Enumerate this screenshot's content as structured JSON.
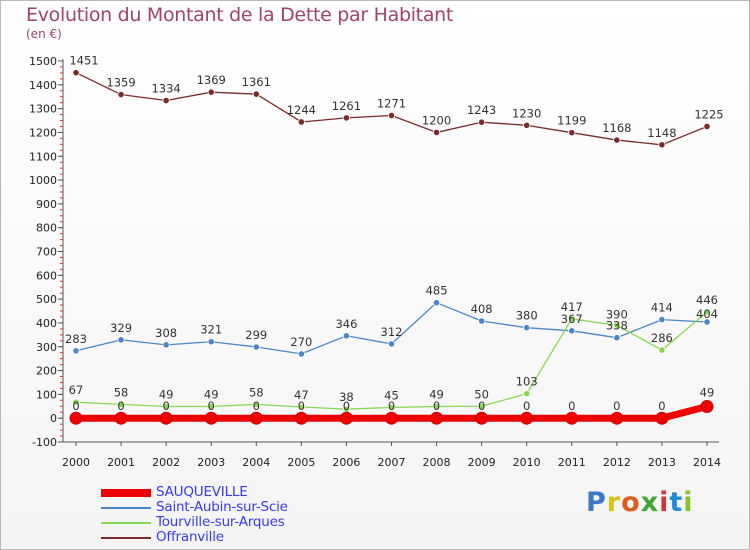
{
  "title": "Evolution du Montant de la Dette par Habitant",
  "unit": "(en €)",
  "brand": {
    "text": "Proxiti",
    "colors": [
      "#3b78c8",
      "#d8c21a",
      "#e05a1a",
      "#3fa635",
      "#c83b3b",
      "#1e8bd8",
      "#8ac32b"
    ]
  },
  "chart_data": {
    "type": "line",
    "x": [
      "2000",
      "2001",
      "2002",
      "2003",
      "2004",
      "2005",
      "2006",
      "2007",
      "2008",
      "2009",
      "2010",
      "2011",
      "2012",
      "2013",
      "2014"
    ],
    "ylim": [
      -100,
      1500
    ],
    "yticks": [
      -100,
      0,
      100,
      200,
      300,
      400,
      500,
      600,
      700,
      800,
      900,
      1000,
      1100,
      1200,
      1300,
      1400,
      1500
    ],
    "grid": false,
    "legend_position": "bottom-left",
    "series": [
      {
        "name": "SAUQUEVILLE",
        "color": "#ee0000",
        "values": [
          0,
          0,
          0,
          0,
          0,
          0,
          0,
          0,
          0,
          0,
          0,
          0,
          0,
          0,
          49
        ],
        "labels": [
          "0",
          "0",
          "0",
          "0",
          "0",
          "0",
          "0",
          "0",
          "0",
          "0",
          "0",
          "0",
          "0",
          "0",
          "49"
        ]
      },
      {
        "name": "Saint-Aubin-sur-Scie",
        "color": "#4a86c8",
        "values": [
          283,
          329,
          308,
          321,
          299,
          270,
          346,
          312,
          485,
          408,
          380,
          367,
          338,
          414,
          404
        ],
        "labels": [
          "283",
          "329",
          "308",
          "321",
          "299",
          "270",
          "346",
          "312",
          "485",
          "408",
          "380",
          "367",
          "338",
          "414",
          "404"
        ]
      },
      {
        "name": "Tourville-sur-Arques",
        "color": "#86d850",
        "values": [
          67,
          58,
          49,
          49,
          58,
          47,
          38,
          45,
          49,
          50,
          103,
          417,
          390,
          286,
          446
        ],
        "labels": [
          "67",
          "58",
          "49",
          "49",
          "58",
          "47",
          "38",
          "45",
          "49",
          "50",
          "103",
          "417",
          "390",
          "286",
          "446"
        ]
      },
      {
        "name": "Offranville",
        "color": "#7a2a2a",
        "values": [
          1451,
          1359,
          1334,
          1369,
          1361,
          1244,
          1261,
          1271,
          1200,
          1243,
          1230,
          1199,
          1168,
          1148,
          1225
        ],
        "labels": [
          "1451",
          "1359",
          "1334",
          "1369",
          "1361",
          "1244",
          "1261",
          "1271",
          "1200",
          "1243",
          "1230",
          "1199",
          "1168",
          "1148",
          "1225"
        ]
      }
    ]
  }
}
